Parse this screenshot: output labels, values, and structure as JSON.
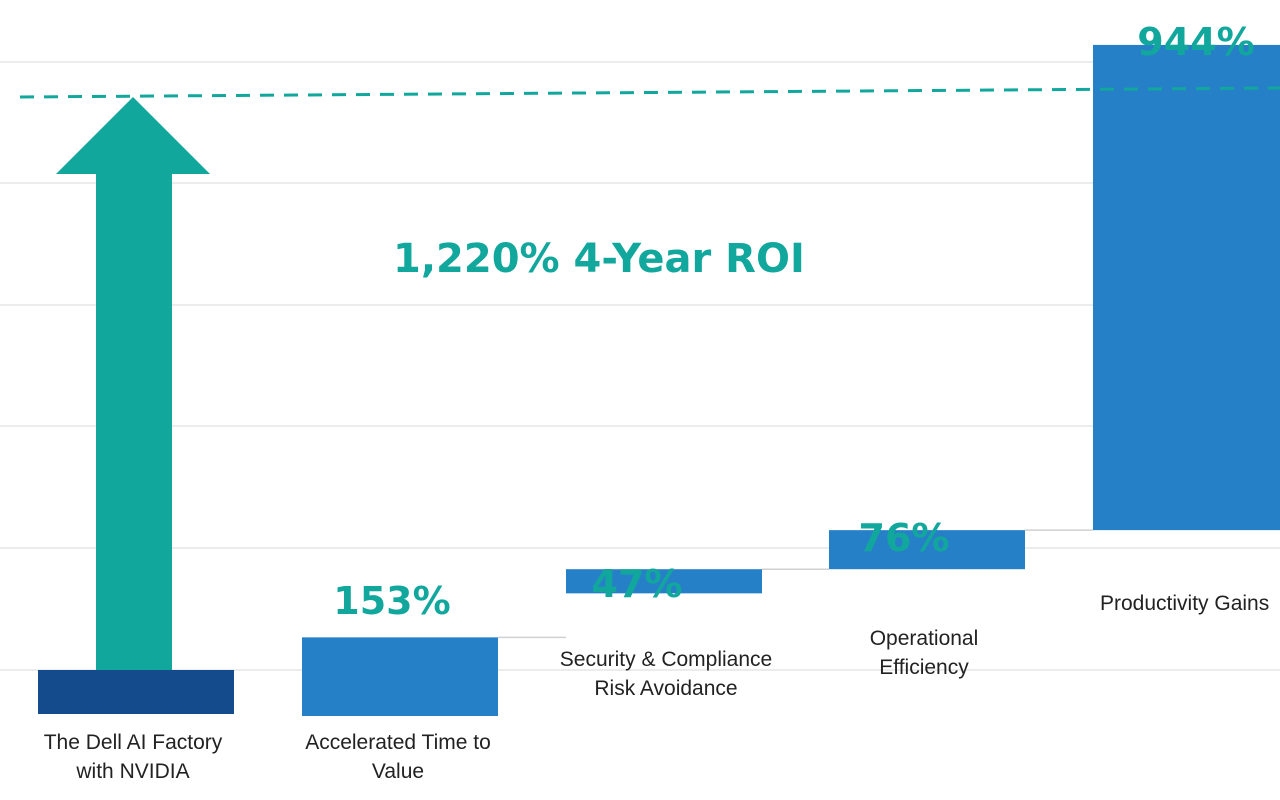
{
  "chart_data": {
    "type": "waterfall",
    "title": "",
    "xlabel": "",
    "ylabel": "",
    "ylim": [
      0,
      1200
    ],
    "grid": true,
    "categories": [
      [
        "The Dell AI Factory",
        "with NVIDIA"
      ],
      [
        "Accelerated  Time to",
        "Value"
      ],
      [
        "Security  & Compliance",
        "Risk Avoidance"
      ],
      [
        "Operational",
        "Efficiency"
      ],
      [
        "Productivity  Gains"
      ]
    ],
    "values": [
      0,
      153,
      47,
      76,
      944
    ],
    "labels": [
      "",
      "153%",
      "47%",
      "76%",
      "944%"
    ],
    "total_label": "1,220% 4-Year ROI",
    "total_value": 1220,
    "colors": {
      "base": "#144b8c",
      "bar": "#2680c7",
      "accent": "#12a79d",
      "grid": "#ececec",
      "connector": "#d0d0d0"
    }
  }
}
